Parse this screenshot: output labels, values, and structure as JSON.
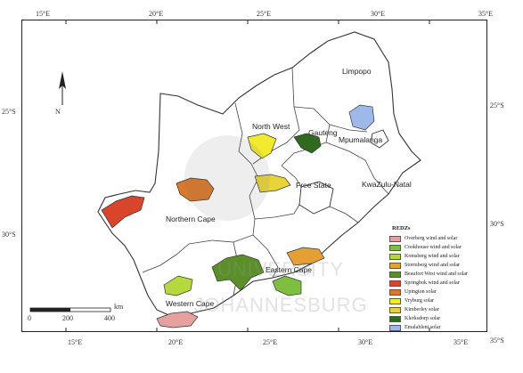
{
  "graticule": {
    "top_labels": [
      "15°E",
      "20°E",
      "25°E",
      "30°E",
      "35°E"
    ],
    "bottom_labels": [
      "15°E",
      "20°E",
      "25°E",
      "30°E",
      "35°E"
    ],
    "left_labels": [
      "25°S",
      "30°S"
    ],
    "right_labels": [
      "25°S",
      "30°S",
      "35°S"
    ]
  },
  "provinces": {
    "limpopo": "Limpopo",
    "north_west": "North West",
    "gauteng": "Gauteng",
    "mpumalanga": "Mpumalanga",
    "free_state": "Free State",
    "kwazulu_natal": "KwaZulu-Natal",
    "northern_cape": "Northern Cape",
    "eastern_cape": "Eastern Cape",
    "western_cape": "Western Cape"
  },
  "north_arrow": "N",
  "scale_bar": {
    "labels": [
      "0",
      "200",
      "400"
    ],
    "unit": "km"
  },
  "legend": {
    "title": "REDZs",
    "items": [
      {
        "label": "Overberg wind and solar",
        "color": "#e6a0a0"
      },
      {
        "label": "Cookhouse wind and solar",
        "color": "#7fbf3f"
      },
      {
        "label": "Komsberg wind and solar",
        "color": "#b5d93d"
      },
      {
        "label": "Stormberg wind and solar",
        "color": "#e5a035"
      },
      {
        "label": "Beaufort West wind and solar",
        "color": "#5a8f2a"
      },
      {
        "label": "Springbok wind and solar",
        "color": "#d9452a"
      },
      {
        "label": "Upington solar",
        "color": "#d9792a"
      },
      {
        "label": "Vryburg solar",
        "color": "#f2ea2e"
      },
      {
        "label": "Kimberley solar",
        "color": "#e8d43a"
      },
      {
        "label": "Klerksdorp solar",
        "color": "#2f6a1e"
      },
      {
        "label": "Emalahleni solar",
        "color": "#9fb8ea"
      }
    ]
  },
  "watermark": {
    "line1": "UNIVERSITY",
    "line2": "OF",
    "line3": "JOHANNESBURG"
  }
}
